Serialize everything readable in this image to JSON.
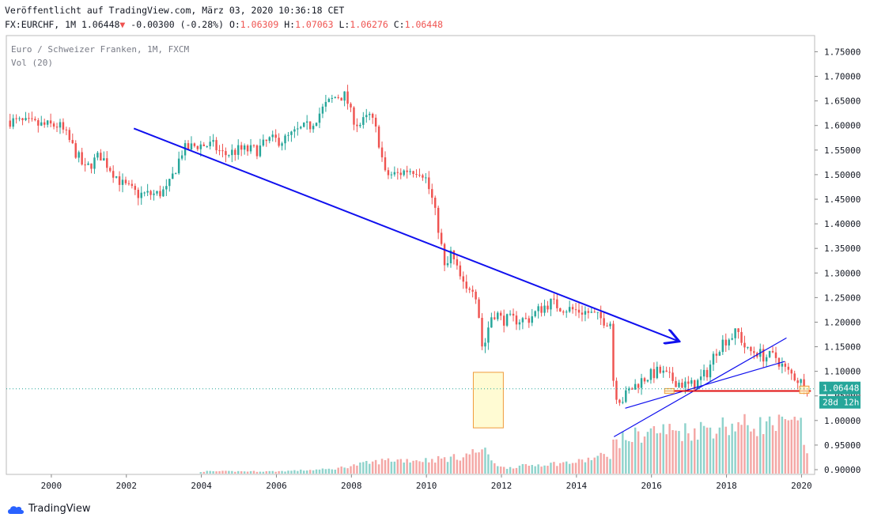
{
  "header": {
    "published": "Veröffentlicht auf TradingView.com, März 03, 2020 10:36:18 CET",
    "symbol": "FX:EURCHF, 1M",
    "last": "1.06448",
    "arrow": "▼",
    "change": "-0.00300 (-0.28%)",
    "o_label": "O:",
    "o_val": "1.06309",
    "h_label": "H:",
    "h_val": "1.07063",
    "l_label": "L:",
    "l_val": "1.06276",
    "c_label": "C:",
    "c_val": "1.06448"
  },
  "legend": {
    "instrument": "Euro / Schweizer Franken, 1M, FXCM",
    "volume": "Vol (20)"
  },
  "price_tag": {
    "value": "1.06448",
    "countdown": "28d 12h"
  },
  "brand": {
    "name": "TradingView"
  },
  "colors": {
    "up": "#26a69a",
    "down": "#ef5350",
    "trendline": "#1010ee",
    "support": "#e01010",
    "tag_bg": "#26a69a",
    "highlight_fill": "#fff9c4",
    "highlight_stroke": "#ef9a3a"
  },
  "chart_data": {
    "type": "candlestick",
    "title": "Euro / Schweizer Franken, 1M, FXCM",
    "interval": "1M",
    "ylim": [
      0.9,
      1.77
    ],
    "y_ticks": [
      "1.75000",
      "1.70000",
      "1.65000",
      "1.60000",
      "1.55000",
      "1.50000",
      "1.45000",
      "1.40000",
      "1.35000",
      "1.30000",
      "1.25000",
      "1.20000",
      "1.15000",
      "1.10000",
      "1.05000",
      "1.00000",
      "0.95000",
      "0.90000"
    ],
    "x_ticks": [
      "2000",
      "2002",
      "2004",
      "2006",
      "2008",
      "2010",
      "2012",
      "2014",
      "2016",
      "2018",
      "2020"
    ],
    "xlim": [
      1998.8,
      2020.35
    ],
    "price_anchors": [
      [
        1998.9,
        1.61
      ],
      [
        1999.3,
        1.605
      ],
      [
        1999.8,
        1.6
      ],
      [
        2000.2,
        1.6
      ],
      [
        2000.4,
        1.58
      ],
      [
        2000.9,
        1.51
      ],
      [
        2001.3,
        1.54
      ],
      [
        2001.6,
        1.51
      ],
      [
        2001.9,
        1.48
      ],
      [
        2002.3,
        1.46
      ],
      [
        2002.8,
        1.46
      ],
      [
        2003.1,
        1.47
      ],
      [
        2003.3,
        1.51
      ],
      [
        2003.5,
        1.55
      ],
      [
        2003.9,
        1.56
      ],
      [
        2004.3,
        1.56
      ],
      [
        2004.6,
        1.54
      ],
      [
        2005.0,
        1.55
      ],
      [
        2005.5,
        1.55
      ],
      [
        2005.8,
        1.57
      ],
      [
        2006.2,
        1.57
      ],
      [
        2006.6,
        1.59
      ],
      [
        2006.9,
        1.6
      ],
      [
        2007.3,
        1.64
      ],
      [
        2007.6,
        1.66
      ],
      [
        2007.85,
        1.66
      ],
      [
        2008.0,
        1.62
      ],
      [
        2008.2,
        1.6
      ],
      [
        2008.5,
        1.62
      ],
      [
        2008.7,
        1.58
      ],
      [
        2008.9,
        1.5
      ],
      [
        2009.2,
        1.5
      ],
      [
        2009.5,
        1.51
      ],
      [
        2009.8,
        1.51
      ],
      [
        2009.95,
        1.5
      ],
      [
        2010.15,
        1.45
      ],
      [
        2010.35,
        1.38
      ],
      [
        2010.5,
        1.3
      ],
      [
        2010.65,
        1.34
      ],
      [
        2010.85,
        1.3
      ],
      [
        2011.05,
        1.26
      ],
      [
        2011.2,
        1.28
      ],
      [
        2011.35,
        1.25
      ],
      [
        2011.5,
        1.14
      ],
      [
        2011.6,
        1.17
      ],
      [
        2011.7,
        1.21
      ],
      [
        2011.85,
        1.22
      ],
      [
        2012.0,
        1.205
      ],
      [
        2012.3,
        1.205
      ],
      [
        2012.7,
        1.205
      ],
      [
        2013.0,
        1.225
      ],
      [
        2013.3,
        1.24
      ],
      [
        2013.6,
        1.23
      ],
      [
        2013.9,
        1.225
      ],
      [
        2014.3,
        1.22
      ],
      [
        2014.7,
        1.205
      ],
      [
        2014.9,
        1.2
      ],
      [
        2015.0,
        1.06
      ],
      [
        2015.2,
        1.04
      ],
      [
        2015.4,
        1.06
      ],
      [
        2015.7,
        1.08
      ],
      [
        2015.9,
        1.09
      ],
      [
        2016.2,
        1.1
      ],
      [
        2016.5,
        1.085
      ],
      [
        2016.8,
        1.075
      ],
      [
        2017.0,
        1.07
      ],
      [
        2017.2,
        1.075
      ],
      [
        2017.5,
        1.1
      ],
      [
        2017.7,
        1.14
      ],
      [
        2017.9,
        1.16
      ],
      [
        2018.1,
        1.17
      ],
      [
        2018.3,
        1.18
      ],
      [
        2018.55,
        1.14
      ],
      [
        2018.8,
        1.14
      ],
      [
        2019.0,
        1.13
      ],
      [
        2019.3,
        1.13
      ],
      [
        2019.6,
        1.1
      ],
      [
        2019.8,
        1.09
      ],
      [
        2019.95,
        1.08
      ],
      [
        2020.1,
        1.07
      ],
      [
        2020.2,
        1.065
      ]
    ],
    "volume_anchors": [
      [
        1998.9,
        0
      ],
      [
        2003.9,
        0
      ],
      [
        2004.0,
        0.04
      ],
      [
        2006.0,
        0.04
      ],
      [
        2007.5,
        0.08
      ],
      [
        2008.2,
        0.16
      ],
      [
        2009.0,
        0.24
      ],
      [
        2010.0,
        0.24
      ],
      [
        2010.8,
        0.28
      ],
      [
        2011.5,
        0.42
      ],
      [
        2011.7,
        0.28
      ],
      [
        2012.0,
        0.1
      ],
      [
        2013.0,
        0.16
      ],
      [
        2014.0,
        0.2
      ],
      [
        2014.9,
        0.34
      ],
      [
        2015.0,
        0.55
      ],
      [
        2016.0,
        0.75
      ],
      [
        2017.0,
        0.75
      ],
      [
        2018.0,
        0.85
      ],
      [
        2019.0,
        0.85
      ],
      [
        2020.0,
        0.85
      ],
      [
        2020.2,
        0.1
      ]
    ],
    "annotations": [
      {
        "type": "trendline",
        "from": [
          2002.2,
          1.594
        ],
        "to": [
          2016.7,
          1.162
        ],
        "arrow": true
      },
      {
        "type": "trendline",
        "from": [
          2015.0,
          0.967
        ],
        "to": [
          2019.6,
          1.168
        ]
      },
      {
        "type": "trendline",
        "from": [
          2015.3,
          1.025
        ],
        "to": [
          2019.55,
          1.12
        ]
      },
      {
        "type": "horizontal",
        "value": 1.06,
        "from": 2016.35,
        "to": 2020.25
      },
      {
        "type": "box",
        "from": [
          2011.25,
          0.985
        ],
        "to": [
          2012.05,
          1.098
        ]
      },
      {
        "type": "box",
        "from": [
          2016.35,
          1.055
        ],
        "to": [
          2016.6,
          1.065
        ]
      },
      {
        "type": "box",
        "from": [
          2019.95,
          1.055
        ],
        "to": [
          2020.2,
          1.07
        ]
      }
    ],
    "last_price": 1.06448
  }
}
